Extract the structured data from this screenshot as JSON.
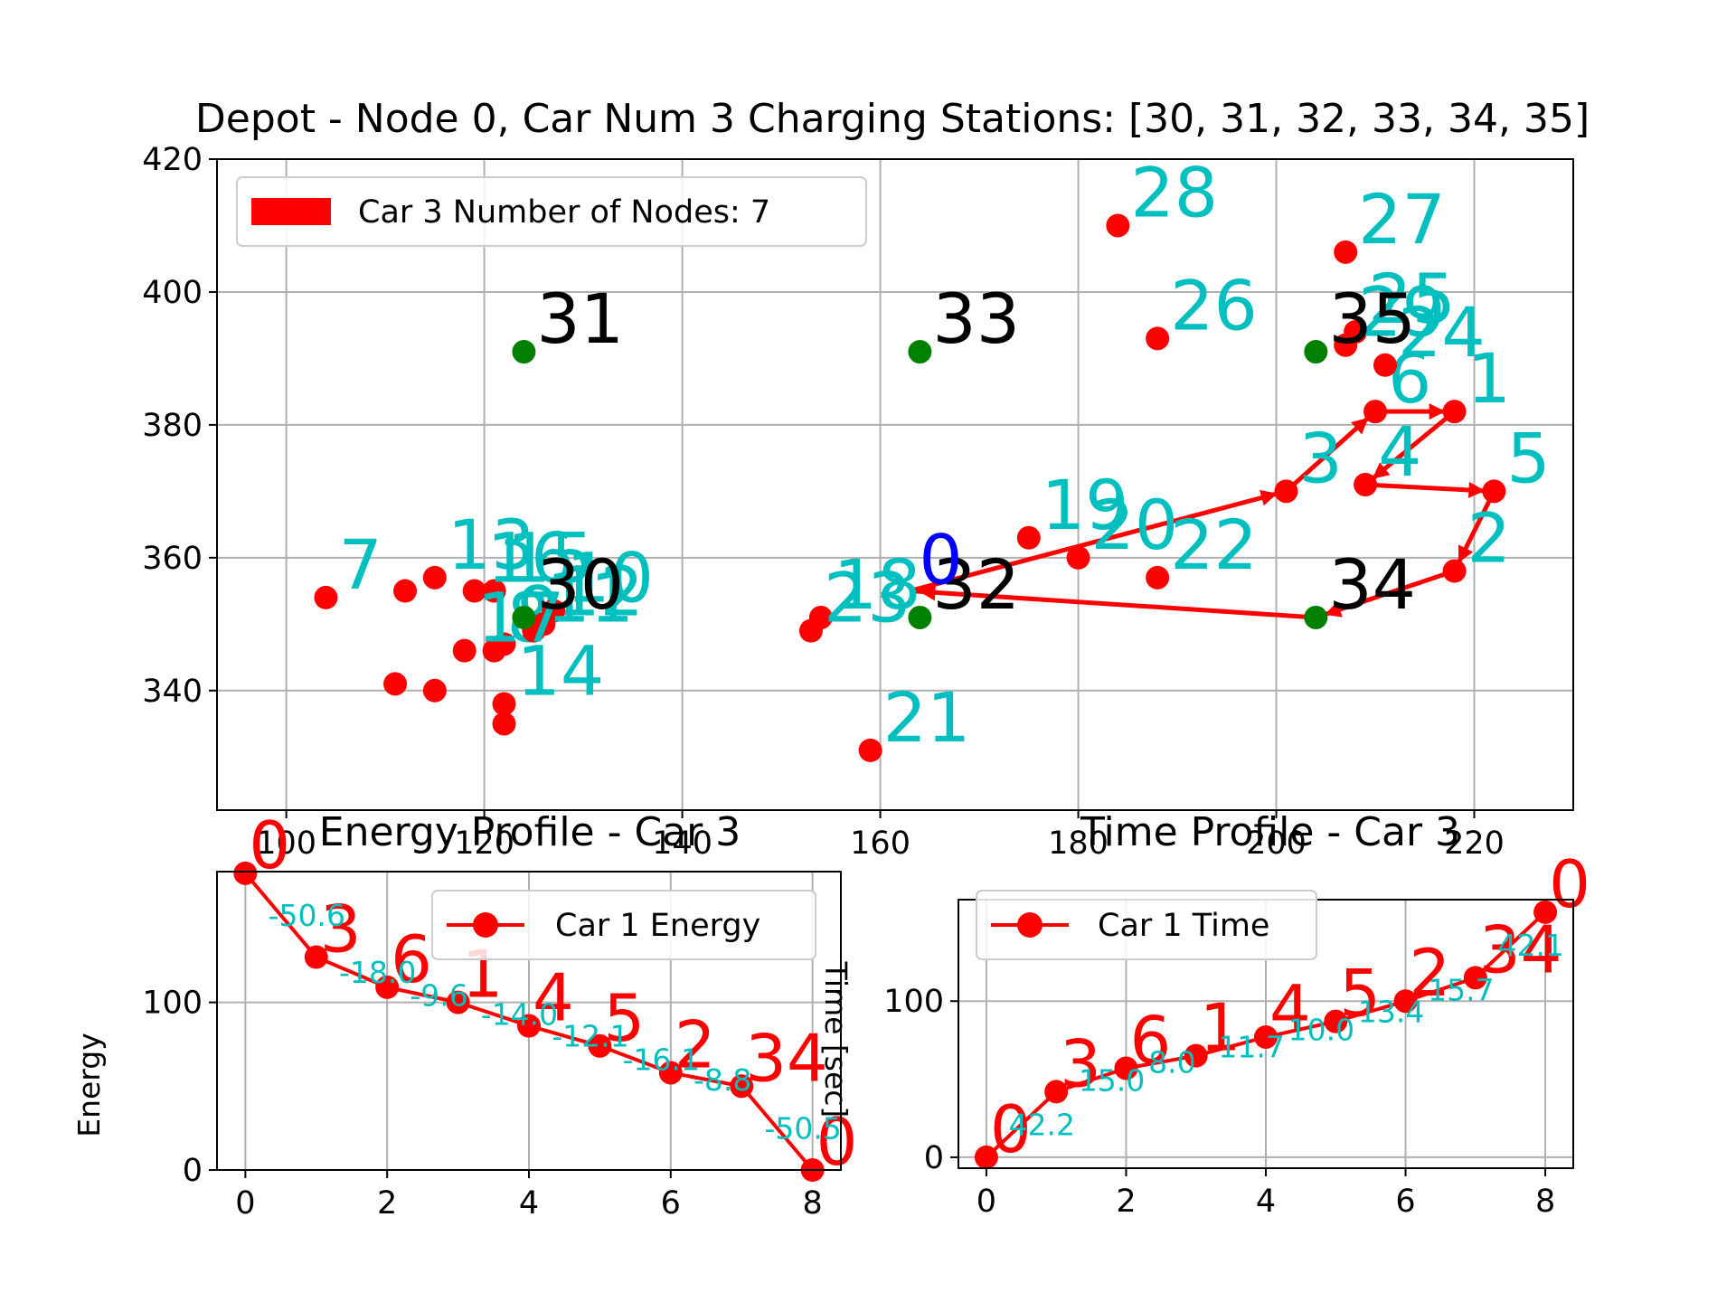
{
  "chart_data": [
    {
      "type": "scatter",
      "title": "Depot - Node 0, Car Num 3 Charging Stations: [30, 31, 32, 33, 34, 35]",
      "xlabel": "",
      "ylabel": "",
      "xlim": [
        93,
        230
      ],
      "ylim": [
        322,
        420
      ],
      "x_ticks": [
        100,
        120,
        140,
        160,
        180,
        200,
        220
      ],
      "y_ticks": [
        340,
        360,
        380,
        400,
        420
      ],
      "grid": true,
      "legend": {
        "label": "Car 3 Number of Nodes: 7",
        "position": "upper-left",
        "color": "#ff0000"
      },
      "customers": [
        {
          "label": "1",
          "x": 218,
          "y": 382
        },
        {
          "label": "2",
          "x": 218,
          "y": 358
        },
        {
          "label": "3",
          "x": 201,
          "y": 370
        },
        {
          "label": "4",
          "x": 209,
          "y": 371
        },
        {
          "label": "5",
          "x": 222,
          "y": 370
        },
        {
          "label": "6",
          "x": 210,
          "y": 382
        },
        {
          "label": "7",
          "x": 104,
          "y": 354
        },
        {
          "label": "8",
          "x": 121,
          "y": 346
        },
        {
          "label": "9",
          "x": 122,
          "y": 347
        },
        {
          "label": "10",
          "x": 127,
          "y": 352
        },
        {
          "label": "11",
          "x": 125,
          "y": 349
        },
        {
          "label": "12",
          "x": 126,
          "y": 350
        },
        {
          "label": "13",
          "x": 115,
          "y": 357
        },
        {
          "label": "14",
          "x": 122,
          "y": 338
        },
        {
          "label": "15",
          "x": 121,
          "y": 355
        },
        {
          "label": "16",
          "x": 119,
          "y": 355
        },
        {
          "label": "17",
          "x": 118,
          "y": 346
        },
        {
          "label": "18",
          "x": 154,
          "y": 351
        },
        {
          "label": "19",
          "x": 175,
          "y": 363
        },
        {
          "label": "20",
          "x": 180,
          "y": 360
        },
        {
          "label": "21",
          "x": 159,
          "y": 331
        },
        {
          "label": "22",
          "x": 188,
          "y": 357
        },
        {
          "label": "23",
          "x": 153,
          "y": 349
        },
        {
          "label": "24",
          "x": 211,
          "y": 389
        },
        {
          "label": "25",
          "x": 208,
          "y": 394
        },
        {
          "label": "26",
          "x": 188,
          "y": 393
        },
        {
          "label": "27",
          "x": 207,
          "y": 406
        },
        {
          "label": "28",
          "x": 184,
          "y": 410
        },
        {
          "label": "29",
          "x": 207,
          "y": 392
        },
        {
          "label": "",
          "x": 112,
          "y": 355
        },
        {
          "label": "",
          "x": 111,
          "y": 341
        },
        {
          "label": "",
          "x": 115,
          "y": 340
        },
        {
          "label": "",
          "x": 122,
          "y": 335
        }
      ],
      "stations": [
        {
          "label": "30",
          "x": 124,
          "y": 351
        },
        {
          "label": "31",
          "x": 124,
          "y": 391
        },
        {
          "label": "32",
          "x": 164,
          "y": 351
        },
        {
          "label": "33",
          "x": 164,
          "y": 391
        },
        {
          "label": "34",
          "x": 204,
          "y": 351
        },
        {
          "label": "35",
          "x": 204,
          "y": 391
        }
      ],
      "depot": {
        "label": "0",
        "x": 163,
        "y": 355
      },
      "route": [
        [
          163,
          355
        ],
        [
          201,
          370
        ],
        [
          210,
          382
        ],
        [
          218,
          382
        ],
        [
          209,
          371
        ],
        [
          222,
          370
        ],
        [
          218,
          358
        ],
        [
          204,
          351
        ],
        [
          163,
          355
        ]
      ],
      "colors": {
        "customer": "#ff0000",
        "station": "#008000",
        "route": "#ff0000",
        "customer_label": "#00bfbf",
        "station_label": "#000000",
        "depot_label": "#0000ff"
      }
    },
    {
      "type": "line",
      "title": "Energy Profile - Car 3",
      "xlabel": "",
      "ylabel": "Energy",
      "xlim": [
        -0.4,
        8.4
      ],
      "ylim": [
        0,
        178
      ],
      "x_ticks": [
        0,
        2,
        4,
        6,
        8
      ],
      "y_ticks": [
        0,
        100
      ],
      "grid": true,
      "series": [
        {
          "name": "Car 1 Energy",
          "x": [
            0,
            1,
            2,
            3,
            4,
            5,
            6,
            7,
            8
          ],
          "values": [
            177,
            127,
            109,
            100,
            86,
            74,
            58,
            50,
            0
          ]
        }
      ],
      "node_labels": [
        "0",
        "3",
        "6",
        "1",
        "4",
        "5",
        "2",
        "34",
        "0"
      ],
      "delta_labels": [
        "-50.6",
        "-18.0",
        "-9.6",
        "-14.0",
        "-12.1",
        "-16.1",
        "-8.8",
        "-50.5"
      ],
      "legend": {
        "position": "upper-right"
      },
      "colors": {
        "line": "#ff0000",
        "node_label": "#ff0000",
        "delta_label": "#00bfbf"
      }
    },
    {
      "type": "line",
      "title": "Time Profile - Car 3",
      "xlabel": "",
      "ylabel": "Time [sec]",
      "xlim": [
        -0.4,
        8.4
      ],
      "ylim": [
        -7,
        165
      ],
      "x_ticks": [
        0,
        2,
        4,
        6,
        8
      ],
      "y_ticks": [
        0,
        100
      ],
      "grid": true,
      "series": [
        {
          "name": "Car 1 Time",
          "x": [
            0,
            1,
            2,
            3,
            4,
            5,
            6,
            7,
            8
          ],
          "values": [
            0,
            42,
            57,
            65,
            77,
            87,
            100,
            115,
            157
          ]
        }
      ],
      "node_labels": [
        "0",
        "3",
        "6",
        "1",
        "4",
        "5",
        "2",
        "34",
        "0"
      ],
      "delta_labels": [
        "42.2",
        "15.0",
        "8.0",
        "11.7",
        "10.0",
        "13.4",
        "15.7",
        "42.1"
      ],
      "legend": {
        "position": "upper-left"
      },
      "colors": {
        "line": "#ff0000",
        "node_label": "#ff0000",
        "delta_label": "#00bfbf"
      }
    }
  ]
}
